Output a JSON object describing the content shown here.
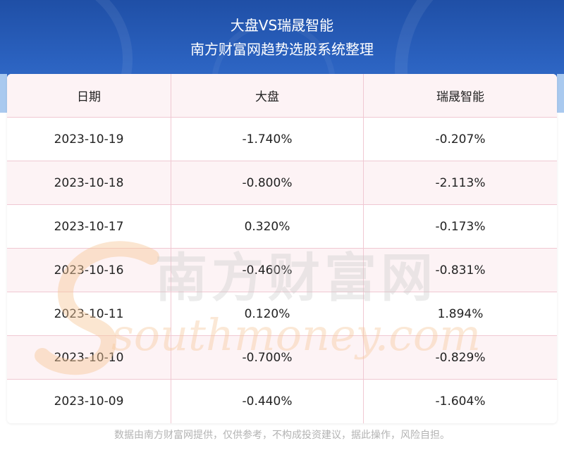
{
  "header": {
    "title": "大盘VS瑞晟智能",
    "subtitle": "南方财富网趋势选股系统整理"
  },
  "table": {
    "columns": [
      "日期",
      "大盘",
      "瑞晟智能"
    ],
    "rows": [
      {
        "date": "2023-10-19",
        "market": "-1.740%",
        "stock": "-0.207%"
      },
      {
        "date": "2023-10-18",
        "market": "-0.800%",
        "stock": "-2.113%"
      },
      {
        "date": "2023-10-17",
        "market": "0.320%",
        "stock": "-0.173%"
      },
      {
        "date": "2023-10-16",
        "market": "-0.460%",
        "stock": "-0.831%"
      },
      {
        "date": "2023-10-11",
        "market": "0.120%",
        "stock": "1.894%"
      },
      {
        "date": "2023-10-10",
        "market": "-0.700%",
        "stock": "-0.829%"
      },
      {
        "date": "2023-10-09",
        "market": "-0.440%",
        "stock": "-1.604%"
      }
    ]
  },
  "watermark": {
    "cn": "南方财富网",
    "en": "southmoney.com"
  },
  "footer": {
    "disclaimer": "数据由南方财富网提供，仅供参考，不构成投资建议，据此操作，风险自担。"
  }
}
